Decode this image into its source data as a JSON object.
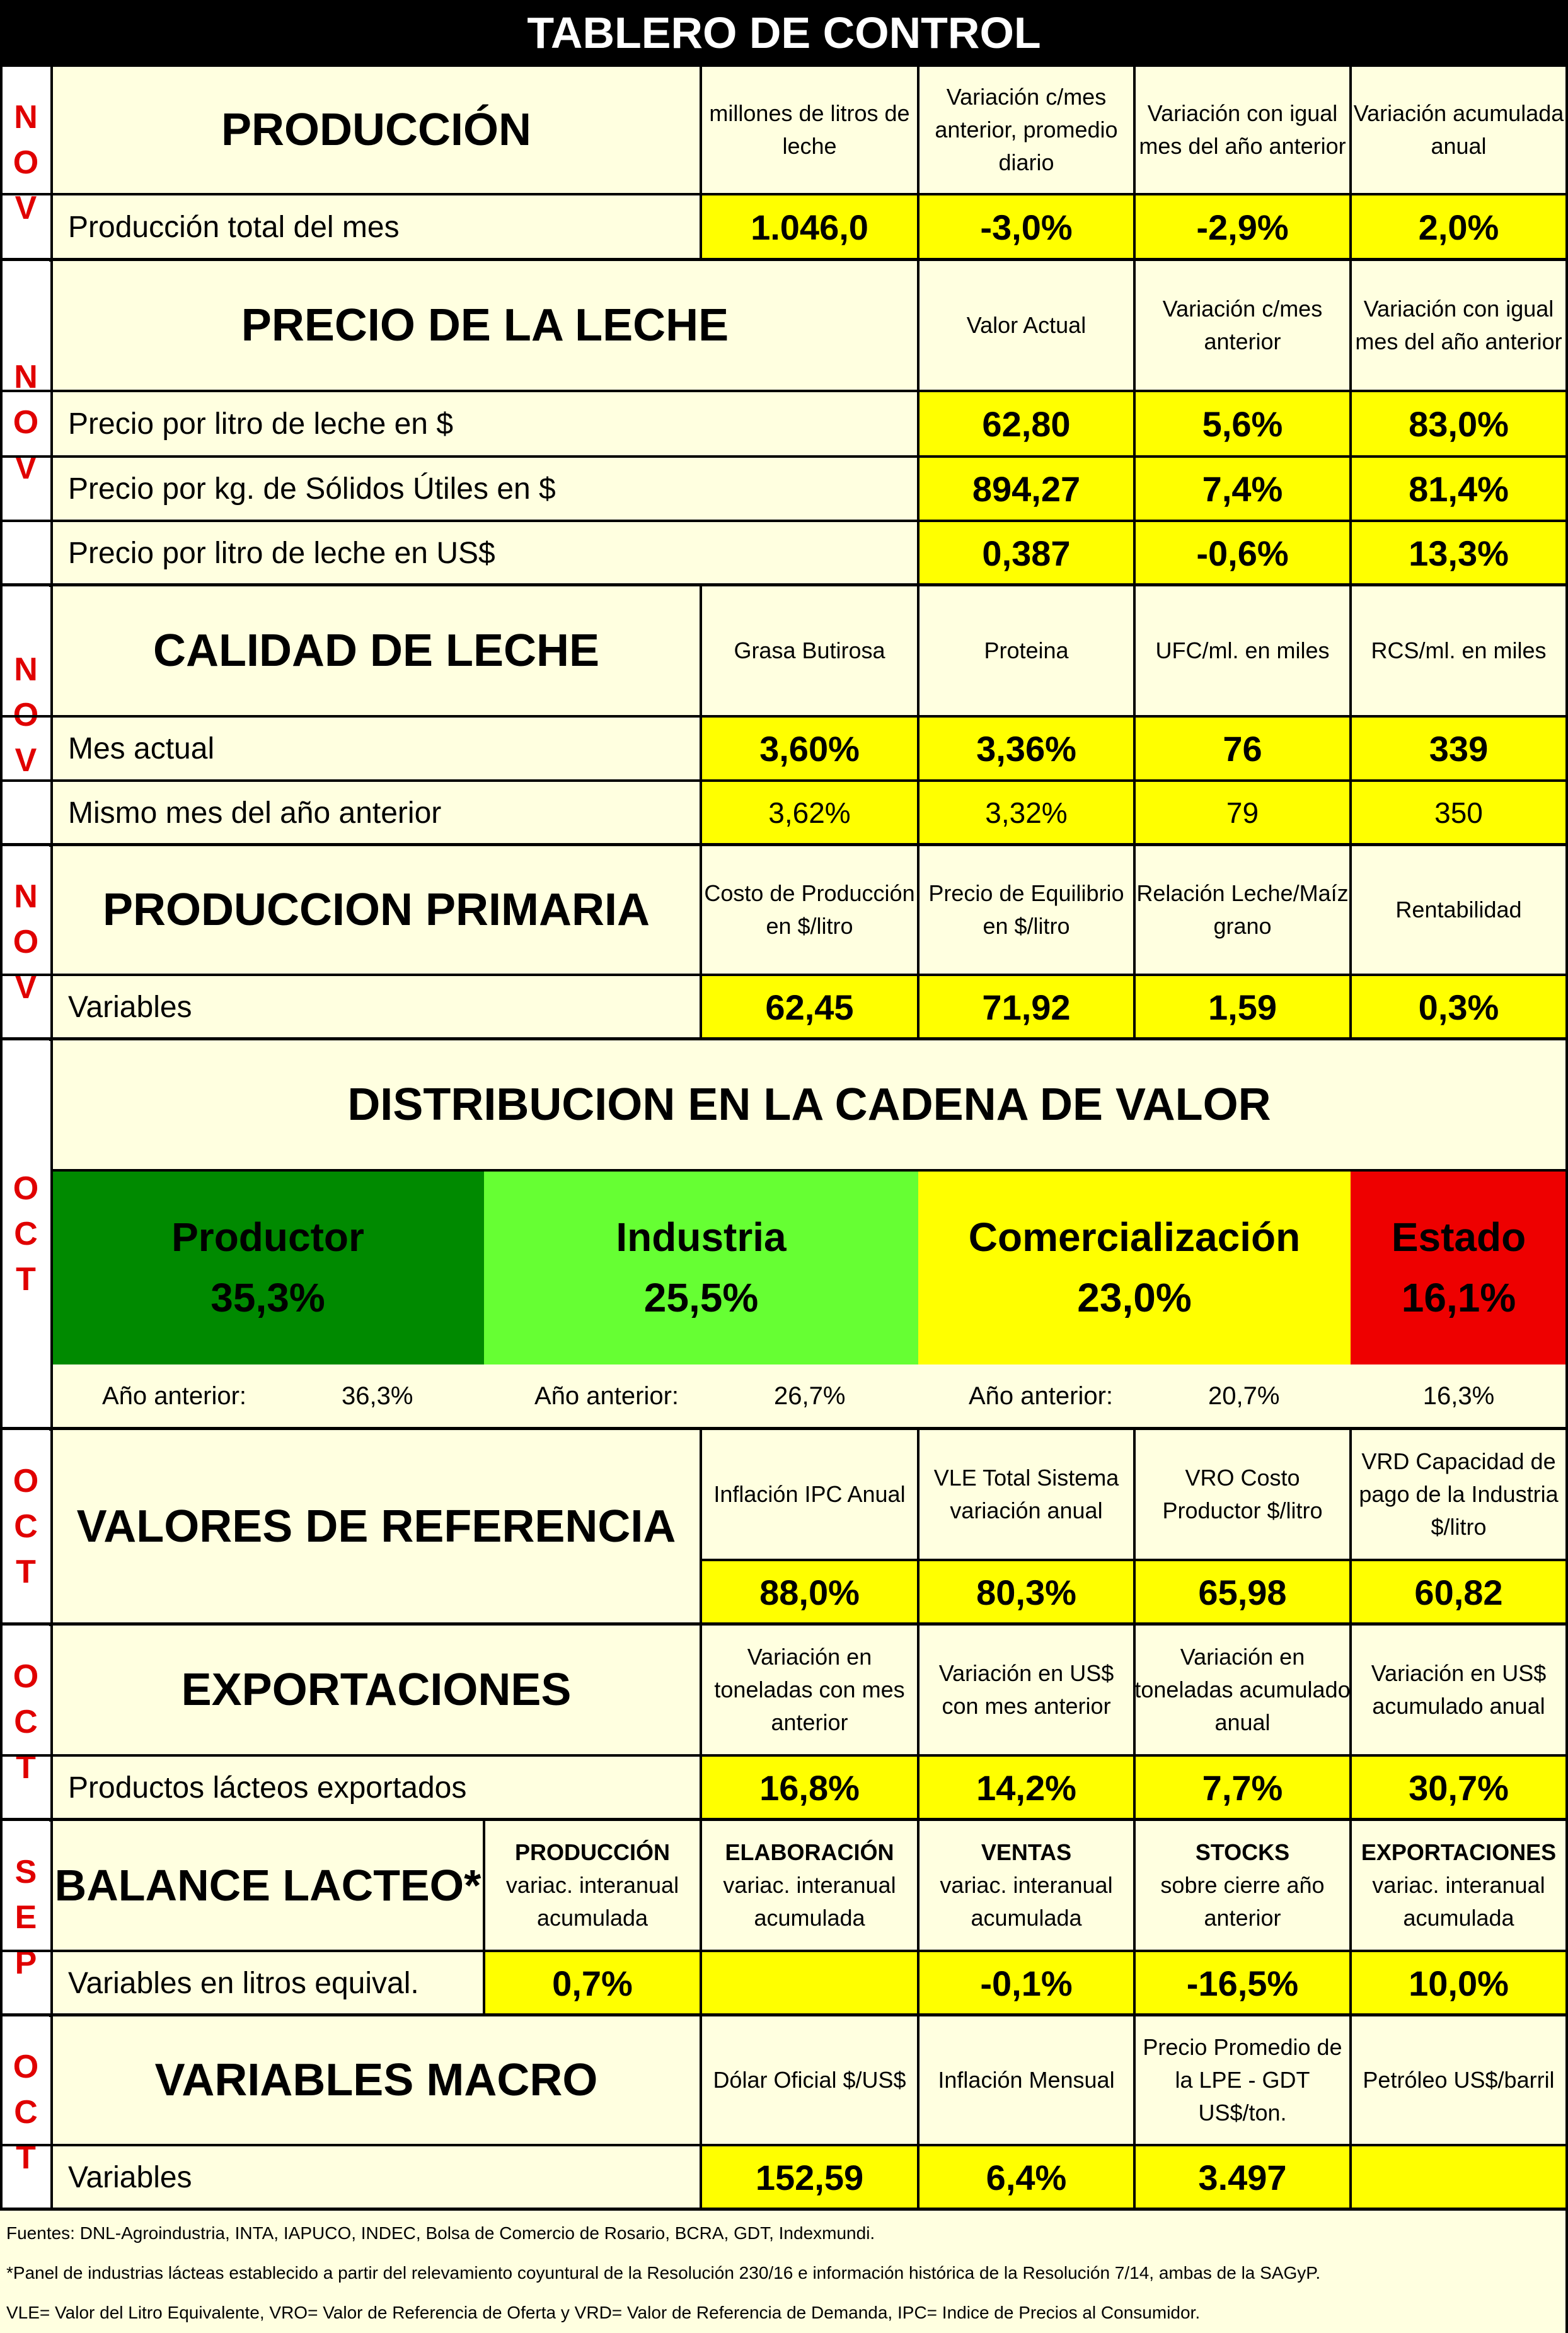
{
  "title": "TABLERO DE CONTROL",
  "produccion": {
    "month": [
      "N",
      "O",
      "V"
    ],
    "title": "PRODUCCIÓN",
    "headers": [
      "millones de litros de leche",
      "Variación c/mes anterior, promedio diario",
      "Variación con igual mes del año anterior",
      "Variación acumulada anual"
    ],
    "row_label": "Producción total del mes",
    "values": [
      "1.046,0",
      "-3,0%",
      "-2,9%",
      "2,0%"
    ]
  },
  "precio": {
    "month": [
      "N",
      "O",
      "V"
    ],
    "title": "PRECIO DE LA LECHE",
    "headers": [
      "Valor Actual",
      "Variación c/mes anterior",
      "Variación con igual mes del año anterior"
    ],
    "rows": [
      {
        "label": "Precio por litro de leche en $",
        "values": [
          "62,80",
          "5,6%",
          "83,0%"
        ]
      },
      {
        "label": "Precio por kg. de Sólidos Útiles en $",
        "values": [
          "894,27",
          "7,4%",
          "81,4%"
        ]
      },
      {
        "label": "Precio por litro de leche en US$",
        "values": [
          "0,387",
          "-0,6%",
          "13,3%"
        ]
      }
    ]
  },
  "calidad": {
    "month": [
      "N",
      "O",
      "V"
    ],
    "title": "CALIDAD DE LECHE",
    "headers": [
      "Grasa Butirosa",
      "Proteina",
      "UFC/ml. en miles",
      "RCS/ml. en miles"
    ],
    "rows": [
      {
        "label": "Mes actual",
        "values": [
          "3,60%",
          "3,36%",
          "76",
          "339"
        ]
      },
      {
        "label": "Mismo mes del año anterior",
        "values": [
          "3,62%",
          "3,32%",
          "79",
          "350"
        ]
      }
    ]
  },
  "primaria": {
    "month": [
      "N",
      "O",
      "V"
    ],
    "title": "PRODUCCION PRIMARIA",
    "headers": [
      "Costo de Producción en $/litro",
      "Precio de Equilibrio en $/litro",
      "Relación Leche/Maíz grano",
      "Rentabilidad"
    ],
    "row_label": "Variables",
    "values": [
      "62,45",
      "71,92",
      "1,59",
      "0,3%"
    ]
  },
  "distribucion": {
    "month": [
      "O",
      "C",
      "T"
    ],
    "title": "DISTRIBUCION EN LA CADENA DE VALOR",
    "segments": [
      {
        "name": "Productor",
        "value": "35,3%",
        "color": "#008a00",
        "prev_label": "Año anterior:",
        "prev_value": "36,3%"
      },
      {
        "name": "Industria",
        "value": "25,5%",
        "color": "#66ff33",
        "prev_label": "Año anterior:",
        "prev_value": "26,7%"
      },
      {
        "name": "Comercialización",
        "value": "23,0%",
        "color": "#ffff00",
        "prev_label": "Año anterior:",
        "prev_value": "20,7%"
      },
      {
        "name": "Estado",
        "value": "16,1%",
        "color": "#ee0000",
        "prev_label": "",
        "prev_value": "16,3%"
      }
    ]
  },
  "referencia": {
    "month": [
      "O",
      "C",
      "T"
    ],
    "title": "VALORES DE REFERENCIA",
    "headers": [
      "Inflación IPC Anual",
      "VLE Total Sistema variación anual",
      "VRO Costo Productor $/litro",
      "VRD Capacidad de pago de la Industria $/litro"
    ],
    "values": [
      "88,0%",
      "80,3%",
      "65,98",
      "60,82"
    ]
  },
  "exportaciones": {
    "month": [
      "O",
      "C",
      "T"
    ],
    "title": "EXPORTACIONES",
    "headers": [
      "Variación en toneladas con mes anterior",
      "Variación en US$ con mes anterior",
      "Variación en toneladas acumulado anual",
      "Variación en US$ acumulado anual"
    ],
    "row_label": "Productos lácteos exportados",
    "values": [
      "16,8%",
      "14,2%",
      "7,7%",
      "30,7%"
    ]
  },
  "balance": {
    "month": [
      "S",
      "E",
      "P"
    ],
    "title": "BALANCE LACTEO*",
    "headers": [
      {
        "bold": "PRODUCCIÓN",
        "text": "variac. interanual acumulada"
      },
      {
        "bold": "ELABORACIÓN",
        "text": "variac. interanual acumulada"
      },
      {
        "bold": "VENTAS",
        "text": "variac. interanual acumulada"
      },
      {
        "bold": "STOCKS",
        "text": "sobre cierre año anterior"
      },
      {
        "bold": "EXPORTACIONES",
        "text": "variac. interanual acumulada"
      }
    ],
    "row_label": "Variables en litros equival.",
    "values": [
      "0,7%",
      "",
      "-0,1%",
      "-16,5%",
      "10,0%"
    ]
  },
  "macro": {
    "month": [
      "O",
      "C",
      "T"
    ],
    "title": "VARIABLES MACRO",
    "headers": [
      "Dólar Oficial $/US$",
      "Inflación Mensual",
      "Precio Promedio de la LPE - GDT US$/ton.",
      "Petróleo US$/barril"
    ],
    "row_label": "Variables",
    "values": [
      "152,59",
      "6,4%",
      "3.497",
      ""
    ]
  },
  "footer": [
    "Fuentes: DNL-Agroindustria, INTA, IAPUCO, INDEC, Bolsa de Comercio de Rosario, BCRA, GDT, Indexmundi.",
    "*Panel de industrias lácteas establecido a partir del relevamiento coyuntural de la Resolución 230/16 e información histórica de la Resolución 7/14, ambas de la SAGyP.",
    "VLE= Valor del Litro Equivalente, VRO= Valor de Referencia de Oferta y VRD= Valor de Referencia de Demanda, IPC= Indice de Precios al Consumidor."
  ]
}
